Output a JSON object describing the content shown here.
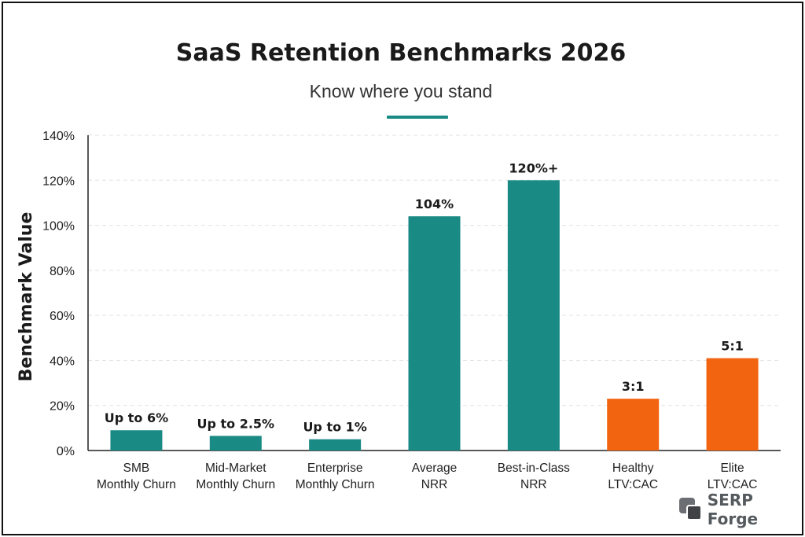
{
  "header": {
    "title": "SaaS Retention Benchmarks 2026",
    "subtitle": "Know where you stand"
  },
  "logo": {
    "text": "SERP Forge",
    "icon": "overlapping-squares-icon"
  },
  "colors": {
    "teal": "#1a8a85",
    "orange": "#f26410",
    "grid": "#e3e3e3",
    "axis": "#222222"
  },
  "chart_data": {
    "type": "bar",
    "title": "SaaS Retention Benchmarks 2026",
    "subtitle": "Know where you stand",
    "ylabel": "Benchmark Value",
    "xlabel": "",
    "ylim": [
      0,
      140
    ],
    "yticks": [
      0,
      20,
      40,
      60,
      80,
      100,
      120,
      140
    ],
    "ytick_labels": [
      "0%",
      "20%",
      "40%",
      "60%",
      "80%",
      "100%",
      "120%",
      "140%"
    ],
    "grid": true,
    "categories": [
      [
        "SMB",
        "Monthly Churn"
      ],
      [
        "Mid-Market",
        "Monthly Churn"
      ],
      [
        "Enterprise",
        "Monthly Churn"
      ],
      [
        "Average",
        "NRR"
      ],
      [
        "Best-in-Class",
        "NRR"
      ],
      [
        "Healthy",
        "LTV:CAC"
      ],
      [
        "Elite",
        "LTV:CAC"
      ]
    ],
    "values": [
      9,
      6.5,
      5,
      104,
      120,
      23,
      41
    ],
    "data_labels": [
      "Up to 6%",
      "Up to 2.5%",
      "Up to 1%",
      "104%",
      "120%+",
      "3:1",
      "5:1"
    ],
    "bar_colors": [
      "#1a8a85",
      "#1a8a85",
      "#1a8a85",
      "#1a8a85",
      "#1a8a85",
      "#f26410",
      "#f26410"
    ]
  }
}
